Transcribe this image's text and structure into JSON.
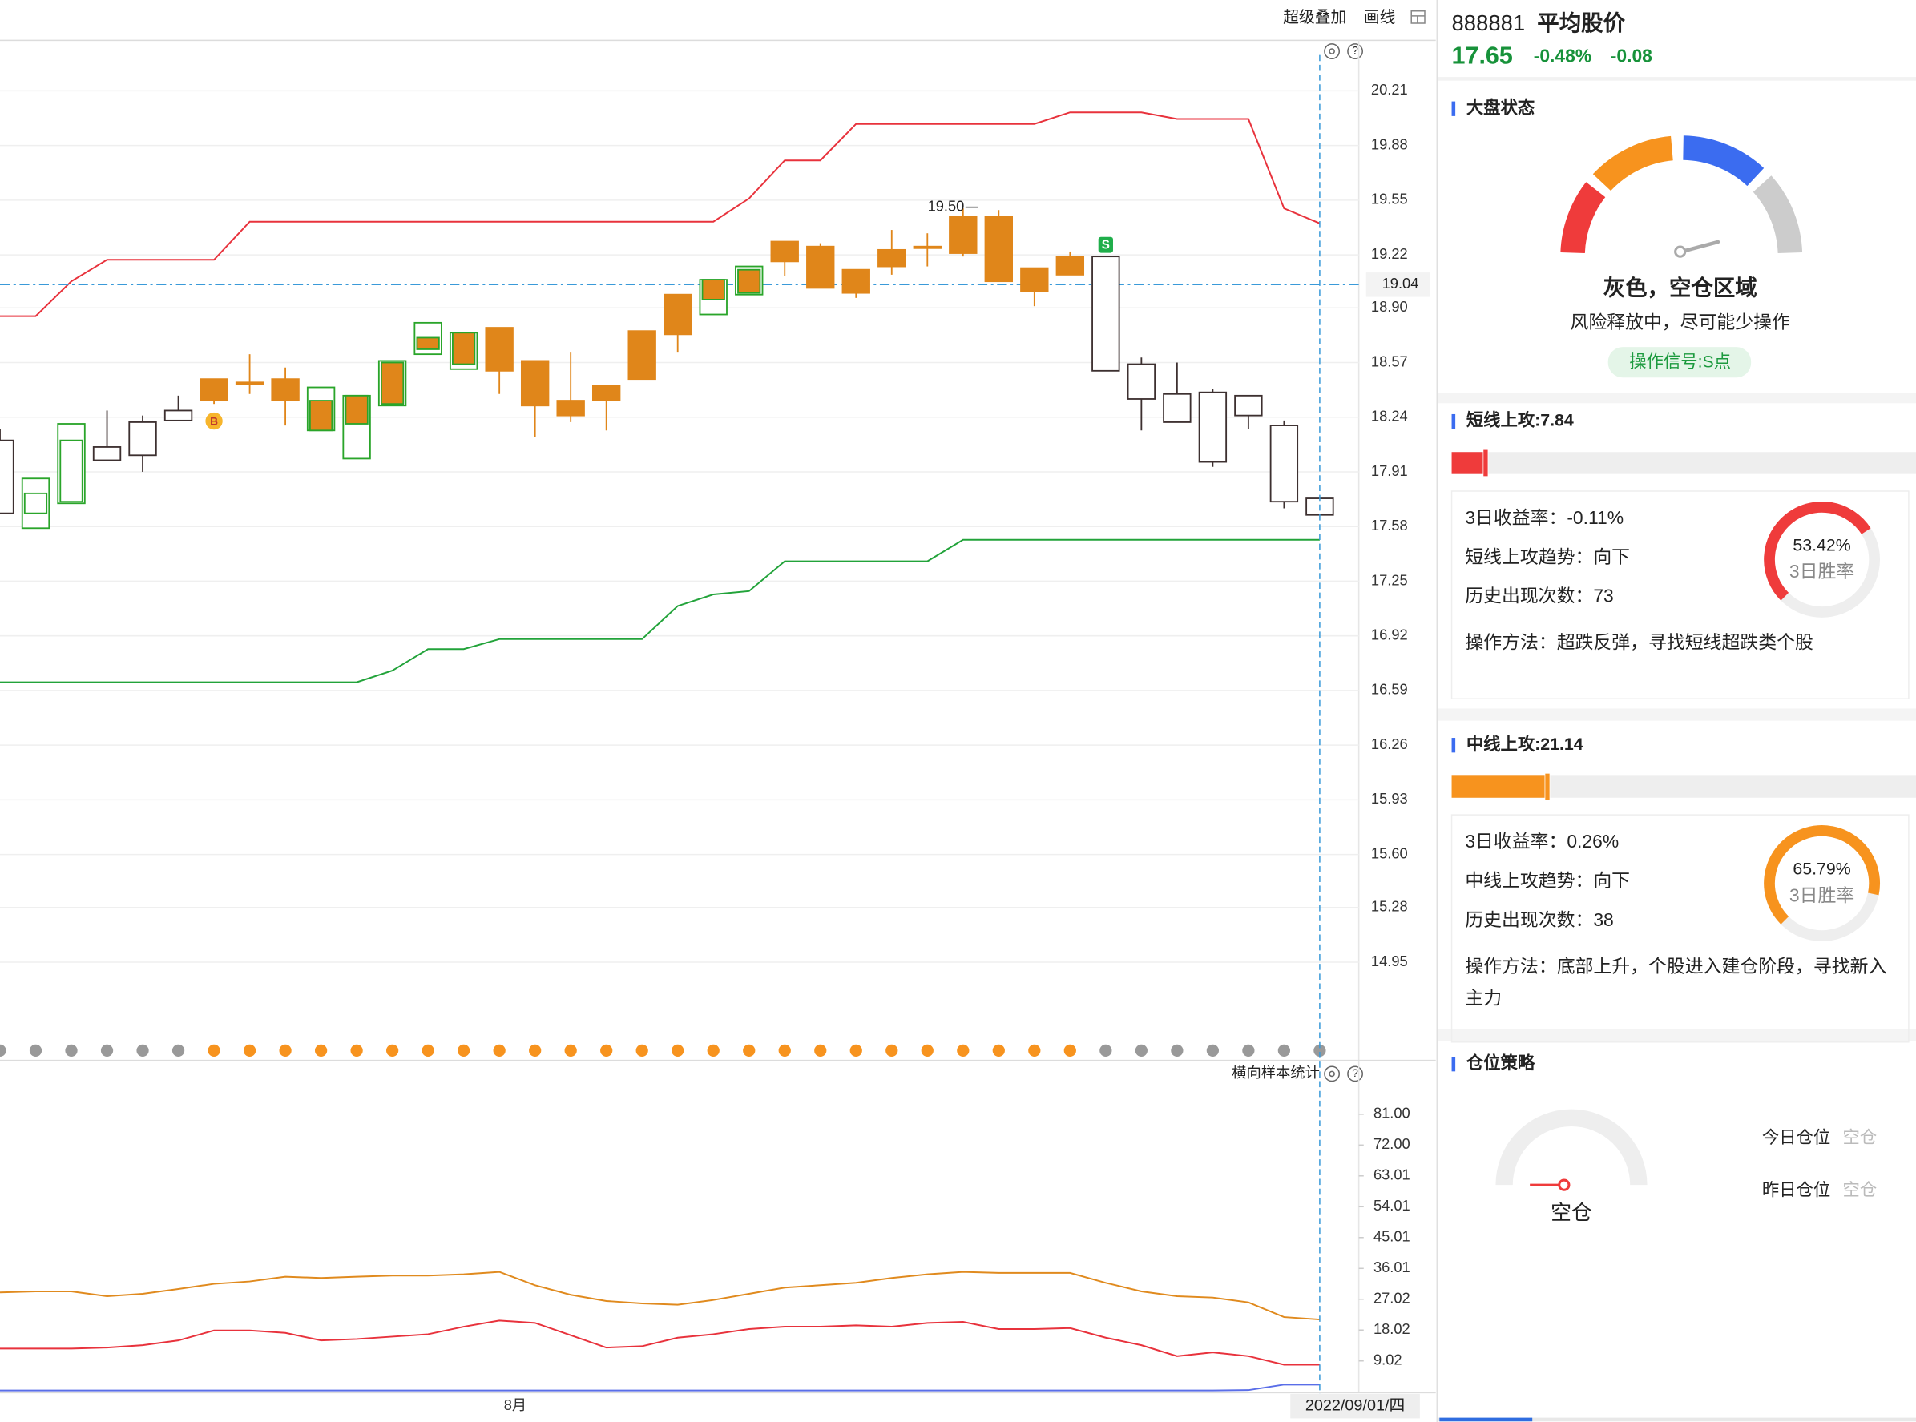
{
  "toolbar": {
    "overlay": "超级叠加",
    "drawing": "画线"
  },
  "main_chart": {
    "type": "candlestick",
    "ylim": [
      14.49,
      20.5
    ],
    "yticks": [
      20.21,
      19.88,
      19.55,
      19.22,
      {
        "value": 18.9,
        "label": "18.90"
      },
      18.57,
      18.24,
      17.91,
      17.58,
      17.25,
      16.92,
      16.59,
      16.26,
      15.93,
      {
        "value": 15.6,
        "label": "15.60"
      },
      15.28,
      14.95
    ],
    "grid": true,
    "fill_color": "#e0861a",
    "ref_price": 19.04,
    "candles": [
      {
        "open": 17.66,
        "high": 18.17,
        "low": 17.66,
        "close": 18.1,
        "color": "#3d3030"
      },
      {
        "open": 17.66,
        "high": 17.87,
        "low": 17.57,
        "close": 17.78,
        "color": "#2aa52a"
      },
      {
        "open": 17.73,
        "high": 18.2,
        "low": 17.72,
        "close": 18.1,
        "color": "#2aa52a"
      },
      {
        "open": 17.98,
        "high": 18.28,
        "low": 17.98,
        "close": 18.06,
        "color": "#3d3030"
      },
      {
        "open": 18.01,
        "high": 18.25,
        "low": 17.91,
        "close": 18.21,
        "color": "#3d3030"
      },
      {
        "open": 18.22,
        "high": 18.37,
        "low": 18.22,
        "close": 18.28,
        "color": "#3d3030"
      },
      {
        "open": 18.47,
        "high": 18.47,
        "low": 18.32,
        "close": 18.34,
        "color": "#e0861a",
        "marker": "B"
      },
      {
        "open": 18.45,
        "high": 18.62,
        "low": 18.38,
        "close": 18.44,
        "color": "#e0861a"
      },
      {
        "open": 18.47,
        "high": 18.54,
        "low": 18.19,
        "close": 18.34,
        "color": "#e0861a"
      },
      {
        "open": 18.34,
        "high": 18.42,
        "low": 18.16,
        "close": 18.16,
        "color": "#2aa52a"
      },
      {
        "open": 18.37,
        "high": 18.37,
        "low": 17.99,
        "close": 18.2,
        "color": "#2aa52a"
      },
      {
        "open": 18.57,
        "high": 18.58,
        "low": 18.31,
        "close": 18.32,
        "color": "#2aa52a"
      },
      {
        "open": 18.72,
        "high": 18.81,
        "low": 18.62,
        "close": 18.65,
        "color": "#2aa52a"
      },
      {
        "open": 18.75,
        "high": 18.75,
        "low": 18.53,
        "close": 18.56,
        "color": "#2aa52a"
      },
      {
        "open": 18.78,
        "high": 18.78,
        "low": 18.38,
        "close": 18.52,
        "color": "#e0861a"
      },
      {
        "open": 18.58,
        "high": 18.58,
        "low": 18.12,
        "close": 18.31,
        "color": "#e0861a"
      },
      {
        "open": 18.34,
        "high": 18.63,
        "low": 18.21,
        "close": 18.25,
        "color": "#e0861a"
      },
      {
        "open": 18.43,
        "high": 18.43,
        "low": 18.16,
        "close": 18.34,
        "color": "#e0861a"
      },
      {
        "open": 18.76,
        "high": 18.76,
        "low": 18.47,
        "close": 18.47,
        "color": "#e0861a"
      },
      {
        "open": 18.98,
        "high": 18.98,
        "low": 18.63,
        "close": 18.74,
        "color": "#e0861a"
      },
      {
        "open": 19.07,
        "high": 19.07,
        "low": 18.86,
        "close": 18.95,
        "color": "#2aa52a"
      },
      {
        "open": 19.13,
        "high": 19.15,
        "low": 18.98,
        "close": 18.99,
        "color": "#2aa52a"
      },
      {
        "open": 19.3,
        "high": 19.3,
        "low": 19.09,
        "close": 19.18,
        "color": "#e0861a"
      },
      {
        "open": 19.27,
        "high": 19.29,
        "low": 19.02,
        "close": 19.02,
        "color": "#e0861a"
      },
      {
        "open": 19.13,
        "high": 19.13,
        "low": 18.96,
        "close": 18.99,
        "color": "#e0861a"
      },
      {
        "open": 19.25,
        "high": 19.37,
        "low": 19.1,
        "close": 19.15,
        "color": "#e0861a"
      },
      {
        "open": 19.27,
        "high": 19.35,
        "low": 19.15,
        "close": 19.26,
        "color": "#e0861a"
      },
      {
        "open": 19.45,
        "high": 19.5,
        "low": 19.21,
        "close": 19.23,
        "color": "#e0861a",
        "high_label": "19.50"
      },
      {
        "open": 19.45,
        "high": 19.49,
        "low": 19.06,
        "close": 19.06,
        "color": "#e0861a"
      },
      {
        "open": 19.14,
        "high": 19.14,
        "low": 18.91,
        "close": 19.0,
        "color": "#e0861a"
      },
      {
        "open": 19.21,
        "high": 19.24,
        "low": 19.1,
        "close": 19.1,
        "color": "#e0861a"
      },
      {
        "open": 18.52,
        "high": 19.21,
        "low": 18.52,
        "close": 19.21,
        "color": "#3d3030",
        "marker": "S"
      },
      {
        "open": 18.35,
        "high": 18.6,
        "low": 18.16,
        "close": 18.56,
        "color": "#3d3030"
      },
      {
        "open": 18.21,
        "high": 18.57,
        "low": 18.21,
        "close": 18.38,
        "color": "#3d3030"
      },
      {
        "open": 17.97,
        "high": 18.41,
        "low": 17.94,
        "close": 18.39,
        "color": "#3d3030"
      },
      {
        "open": 18.25,
        "high": 18.37,
        "low": 18.17,
        "close": 18.37,
        "color": "#3d3030"
      },
      {
        "open": 17.73,
        "high": 18.22,
        "low": 17.69,
        "close": 18.19,
        "color": "#3d3030"
      },
      {
        "open": 17.65,
        "high": 17.75,
        "low": 17.65,
        "close": 17.75,
        "color": "#3d3030"
      }
    ],
    "upper_band": {
      "color": "#e8323c",
      "values": [
        18.85,
        18.85,
        19.06,
        19.19,
        19.19,
        19.19,
        19.19,
        19.42,
        19.42,
        19.42,
        19.42,
        19.42,
        19.42,
        19.42,
        19.42,
        19.42,
        19.42,
        19.42,
        19.42,
        19.42,
        19.42,
        19.56,
        19.79,
        19.79,
        20.01,
        20.01,
        20.01,
        20.01,
        20.01,
        20.01,
        20.08,
        20.08,
        20.08,
        20.04,
        20.04,
        20.04,
        19.5,
        19.41
      ]
    },
    "lower_band": {
      "color": "#22a33a",
      "values": [
        16.64,
        16.64,
        16.64,
        16.64,
        16.64,
        16.64,
        16.64,
        16.64,
        16.64,
        16.64,
        16.64,
        16.71,
        16.84,
        16.84,
        16.9,
        16.9,
        16.9,
        16.9,
        16.9,
        17.1,
        17.17,
        17.19,
        17.37,
        17.37,
        17.37,
        17.37,
        17.37,
        17.5,
        17.5,
        17.5,
        17.5,
        17.5,
        17.5,
        17.5,
        17.5,
        17.5,
        17.5,
        17.5
      ]
    },
    "signal_colors": [
      "#999999",
      "#999999",
      "#999999",
      "#999999",
      "#999999",
      "#999999",
      "#f7931e",
      "#f7931e",
      "#f7931e",
      "#f7931e",
      "#f7931e",
      "#f7931e",
      "#f7931e",
      "#f7931e",
      "#f7931e",
      "#f7931e",
      "#f7931e",
      "#f7931e",
      "#f7931e",
      "#f7931e",
      "#f7931e",
      "#f7931e",
      "#f7931e",
      "#f7931e",
      "#f7931e",
      "#f7931e",
      "#f7931e",
      "#f7931e",
      "#f7931e",
      "#f7931e",
      "#f7931e",
      "#999999",
      "#999999",
      "#999999",
      "#999999",
      "#999999",
      "#999999",
      "#999999"
    ]
  },
  "lower_chart": {
    "type": "line",
    "label": "横向样本统计",
    "ylim": [
      0,
      96
    ],
    "yticks": [
      {
        "value": 81,
        "label": "81.00"
      },
      {
        "value": 72,
        "label": "72.00"
      },
      63.01,
      54.01,
      45.01,
      36.01,
      27.02,
      18.02,
      9.02
    ],
    "categories": [
      null,
      null,
      null,
      null,
      null,
      null,
      null,
      null,
      null,
      null,
      null,
      null,
      null,
      null,
      "8月",
      null,
      null,
      null,
      null,
      null,
      null,
      null,
      null,
      null,
      null,
      null,
      null,
      null,
      null,
      null,
      null,
      null,
      null,
      null,
      null,
      null,
      null,
      "2022/09/01/四"
    ],
    "series": [
      {
        "color": "#e08a1e",
        "values": [
          29.0,
          29.3,
          29.3,
          27.9,
          28.6,
          30.0,
          31.5,
          32.2,
          33.6,
          33.2,
          33.6,
          33.9,
          33.9,
          34.3,
          35.0,
          31.1,
          28.3,
          26.5,
          25.8,
          25.4,
          26.8,
          28.6,
          30.4,
          31.1,
          31.8,
          33.2,
          34.3,
          35.0,
          34.7,
          34.7,
          34.7,
          31.8,
          29.3,
          27.9,
          27.5,
          26.1,
          21.8,
          21.1
        ]
      },
      {
        "color": "#e8323c",
        "values": [
          12.6,
          12.6,
          12.6,
          12.9,
          13.6,
          15.0,
          17.9,
          17.9,
          17.2,
          15.0,
          15.4,
          16.1,
          16.8,
          19.0,
          20.8,
          20.1,
          16.5,
          12.9,
          13.3,
          15.8,
          16.8,
          18.3,
          19.0,
          19.0,
          19.4,
          19.0,
          20.1,
          20.4,
          18.3,
          18.3,
          18.6,
          15.8,
          13.6,
          10.4,
          11.5,
          10.4,
          7.9,
          7.9
        ]
      },
      {
        "color": "#5a6ee8",
        "values": [
          0.4,
          0.4,
          0.4,
          0.4,
          0.4,
          0.4,
          0.4,
          0.4,
          0.4,
          0.4,
          0.4,
          0.4,
          0.4,
          0.4,
          0.4,
          0.4,
          0.4,
          0.4,
          0.4,
          0.4,
          0.4,
          0.4,
          0.4,
          0.4,
          0.4,
          0.4,
          0.4,
          0.4,
          0.4,
          0.4,
          0.4,
          0.4,
          0.4,
          0.4,
          0.4,
          0.5,
          2.1,
          2.1
        ]
      }
    ]
  },
  "sidebar": {
    "header": {
      "code": "888881",
      "name": "平均股价",
      "price": 17.65,
      "change_pct": -0.48,
      "change_pct_label": "-0.48%",
      "change": -0.08
    },
    "market": {
      "title": "大盘状态",
      "status": "灰色，空仓区域",
      "description": "风险释放中，尽可能少操作",
      "signal": "操作信号:S点"
    },
    "short": {
      "title": "短线上攻:7.84",
      "value": 7.84,
      "color": "#ef3b3b",
      "stats": [
        "3日收益率：-0.11%",
        "短线上攻趋势：向下",
        "历史出现次数：73"
      ],
      "method": "操作方法：超跌反弹，寻找短线超跌类个股",
      "win_rate": 53.42,
      "win_rate_label": "53.42%",
      "win_rate_title": "3日胜率"
    },
    "medium": {
      "title": "中线上攻:21.14",
      "value": 21.14,
      "color": "#f7931e",
      "stats": [
        "3日收益率：0.26%",
        "中线上攻趋势：向下",
        "历史出现次数：38"
      ],
      "method": "操作方法：底部上升，个股进入建仓阶段，寻找新入主力",
      "win_rate": 65.79,
      "win_rate_label": "65.79%",
      "win_rate_title": "3日胜率"
    },
    "position": {
      "title": "仓位策略",
      "gauge_label": "空仓",
      "today_label": "今日仓位",
      "today_value": "空仓",
      "yesterday_label": "昨日仓位",
      "yesterday_value": "空仓"
    }
  }
}
